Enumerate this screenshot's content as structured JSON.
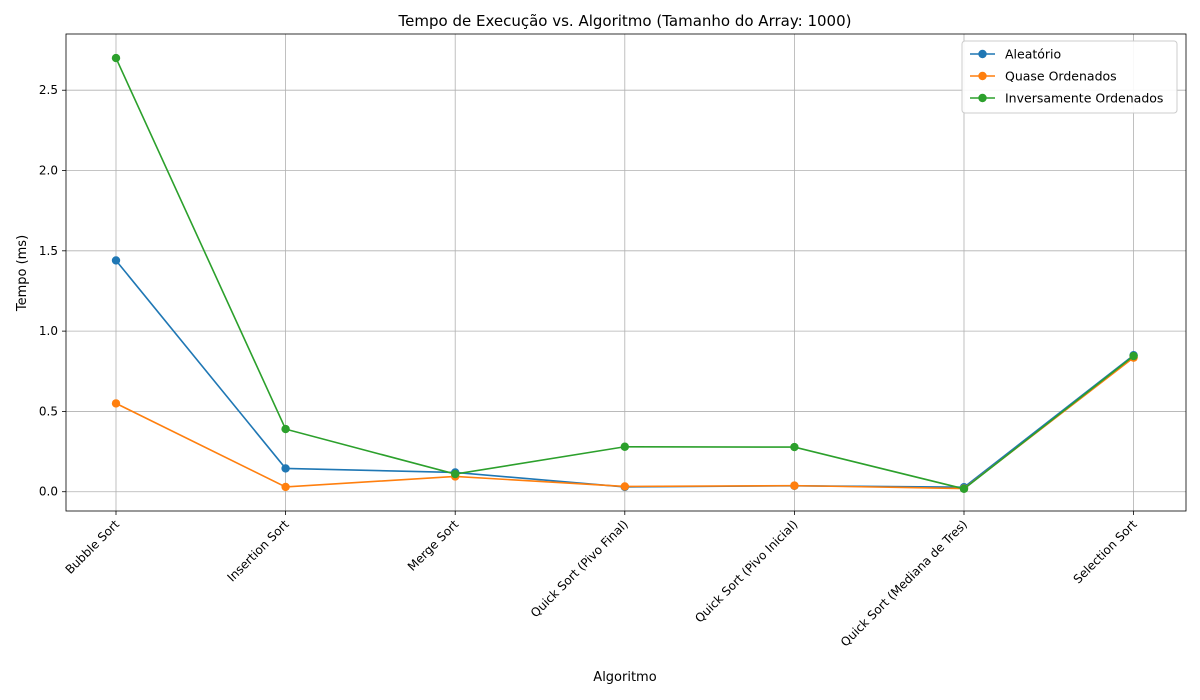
{
  "chart_data": {
    "type": "line",
    "title": "Tempo de Execução vs. Algoritmo (Tamanho do Array: 1000)",
    "xlabel": "Algoritmo",
    "ylabel": "Tempo (ms)",
    "categories": [
      "Bubble Sort",
      "Insertion Sort",
      "Merge Sort",
      "Quick Sort (Pivo Final)",
      "Quick Sort (Pivo Inicial)",
      "Quick Sort (Mediana de Tres)",
      "Selection Sort"
    ],
    "ylim": [
      -0.12,
      2.85
    ],
    "yticks": [
      0.0,
      0.5,
      1.0,
      1.5,
      2.0,
      2.5
    ],
    "ytick_labels": [
      "0.0",
      "0.5",
      "1.0",
      "1.5",
      "2.0",
      "2.5"
    ],
    "grid": true,
    "legend_position": "top-right",
    "series": [
      {
        "name": "Aleatório",
        "color": "#1f77b4",
        "values": [
          1.44,
          0.145,
          0.12,
          0.03,
          0.037,
          0.028,
          0.85
        ]
      },
      {
        "name": "Quase Ordenados",
        "color": "#ff7f0e",
        "values": [
          0.55,
          0.03,
          0.095,
          0.033,
          0.038,
          0.02,
          0.835
        ]
      },
      {
        "name": "Inversamente Ordenados",
        "color": "#2ca02c",
        "values": [
          2.7,
          0.39,
          0.11,
          0.28,
          0.278,
          0.018,
          0.845
        ]
      }
    ]
  }
}
